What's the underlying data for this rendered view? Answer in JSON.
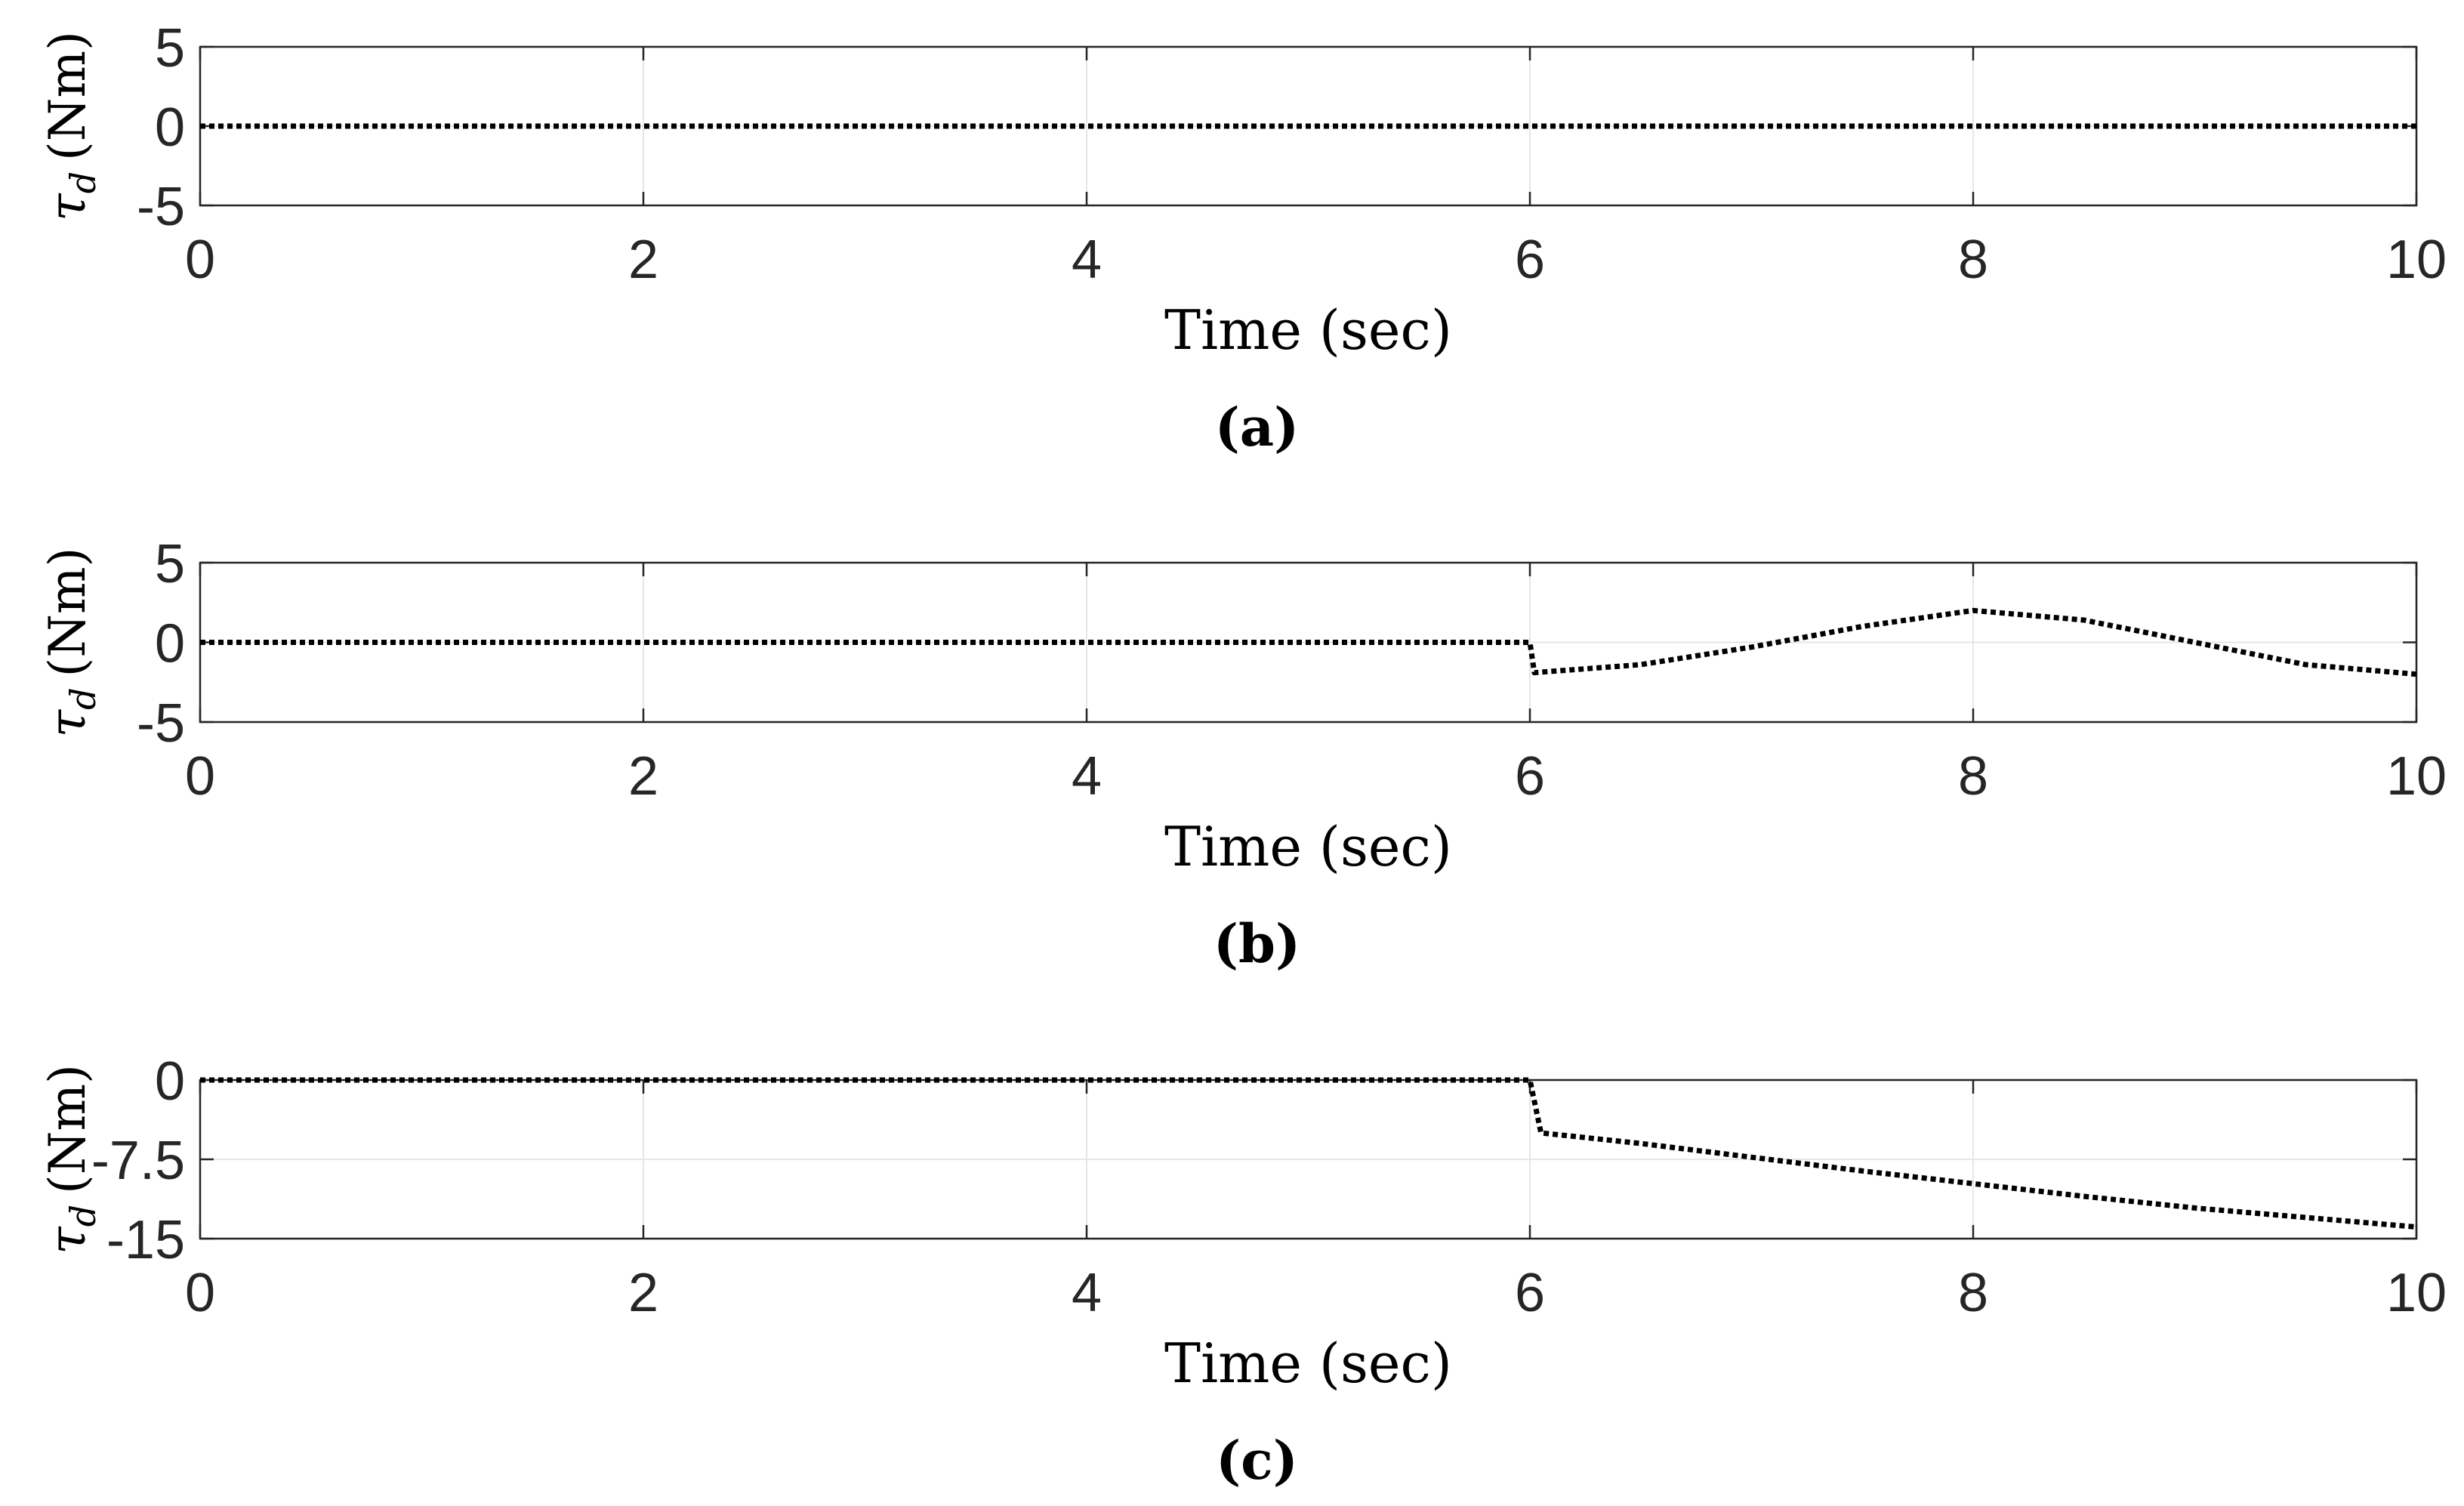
{
  "chart_data": [
    {
      "type": "line",
      "caption": "(a)",
      "ylabel": {
        "symbol": "τ",
        "subscript": "d",
        "unit": "(Nm)"
      },
      "xlabel": "Time (sec)",
      "xlim": [
        0,
        10
      ],
      "ylim": [
        -5,
        5
      ],
      "xticks": [
        0,
        2,
        4,
        6,
        8,
        10
      ],
      "xtick_labels": [
        "0",
        "2",
        "4",
        "6",
        "8",
        "10"
      ],
      "yticks": [
        5,
        0,
        -5
      ],
      "ytick_labels": [
        "5",
        "0",
        "-5"
      ],
      "grid": true,
      "line_style": "dotted",
      "line_color": "#000000",
      "series": [
        {
          "x": [
            0,
            10
          ],
          "y": [
            0,
            0
          ]
        }
      ]
    },
    {
      "type": "line",
      "caption": "(b)",
      "ylabel": {
        "symbol": "τ",
        "subscript": "d",
        "unit": "(Nm)"
      },
      "xlabel": "Time (sec)",
      "xlim": [
        0,
        10
      ],
      "ylim": [
        -5,
        5
      ],
      "xticks": [
        0,
        2,
        4,
        6,
        8,
        10
      ],
      "xtick_labels": [
        "0",
        "2",
        "4",
        "6",
        "8",
        "10"
      ],
      "yticks": [
        5,
        0,
        -5
      ],
      "ytick_labels": [
        "5",
        "0",
        "-5"
      ],
      "grid": true,
      "line_style": "dotted",
      "line_color": "#000000",
      "series": [
        {
          "x": [
            0,
            6.0,
            6.02,
            6.5,
            7.0,
            7.5,
            8.0,
            8.5,
            9.0,
            9.5,
            10.0
          ],
          "y": [
            0,
            0,
            -1.9,
            -1.4,
            -0.3,
            1.0,
            2.0,
            1.4,
            0.0,
            -1.4,
            -2.0
          ]
        }
      ]
    },
    {
      "type": "line",
      "caption": "(c)",
      "ylabel": {
        "symbol": "τ",
        "subscript": "d",
        "unit": "(Nm)"
      },
      "xlabel": "Time (sec)",
      "xlim": [
        0,
        10
      ],
      "ylim": [
        -15,
        0
      ],
      "xticks": [
        0,
        2,
        4,
        6,
        8,
        10
      ],
      "xtick_labels": [
        "0",
        "2",
        "4",
        "6",
        "8",
        "10"
      ],
      "yticks": [
        0,
        -7.5,
        -15
      ],
      "ytick_labels": [
        "0",
        "-7.5",
        "-15"
      ],
      "grid": true,
      "line_style": "dotted",
      "line_color": "#000000",
      "series": [
        {
          "x": [
            0,
            6.0,
            6.05,
            6.5,
            7.0,
            7.5,
            8.0,
            8.5,
            9.0,
            9.5,
            10.0
          ],
          "y": [
            0,
            0,
            -5.0,
            -6.0,
            -7.3,
            -8.6,
            -9.8,
            -11.0,
            -12.1,
            -13.0,
            -13.9
          ]
        }
      ]
    }
  ]
}
